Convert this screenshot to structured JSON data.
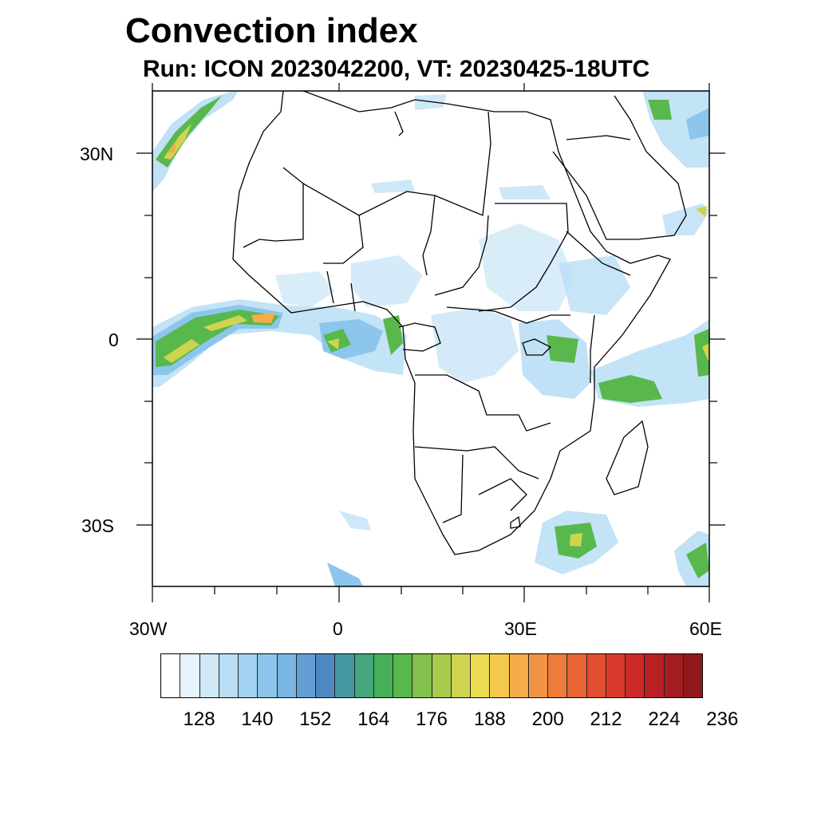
{
  "title": "Convection index",
  "subtitle": "Run: ICON 2023042200,  VT: 20230425-18UTC",
  "axes": {
    "lat_labels": [
      "30N",
      "0",
      "30S"
    ],
    "lon_labels": [
      "30W",
      "0",
      "30E",
      "60E"
    ]
  },
  "colorbar": {
    "labels": [
      "128",
      "140",
      "152",
      "164",
      "176",
      "188",
      "200",
      "212",
      "224",
      "236"
    ],
    "colors": [
      "#ffffff",
      "#e6f3fc",
      "#cfe8f8",
      "#b9def5",
      "#a2d4f2",
      "#8cc6ec",
      "#79b5e3",
      "#639fd6",
      "#4f88c0",
      "#4598a0",
      "#46a67c",
      "#46b058",
      "#58b84c",
      "#83c14c",
      "#a8cb4c",
      "#cfd450",
      "#ecdc52",
      "#f6c84d",
      "#f4ad48",
      "#f29444",
      "#ee7a3c",
      "#e86434",
      "#e24e30",
      "#da3a2c",
      "#cc2a28",
      "#b82024",
      "#a31c20",
      "#8f1a1c"
    ]
  }
}
